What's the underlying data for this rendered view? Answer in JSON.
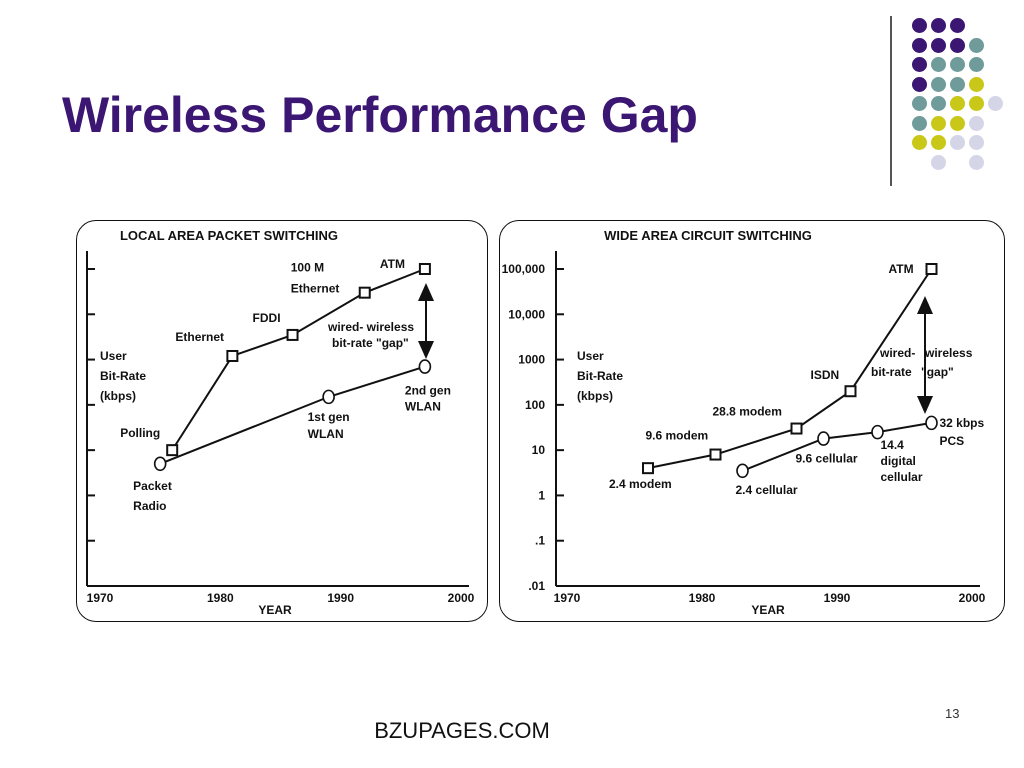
{
  "slide": {
    "title": "Wireless Performance Gap",
    "footer": "BZUPAGES.COM",
    "page_number": "13",
    "colors": {
      "title": "#3b1672",
      "purple": "#3b1672",
      "teal": "#6f9b9b",
      "yellow": "#c9c818",
      "lavender": "#d5d5e8"
    }
  },
  "chart_data": [
    {
      "type": "line",
      "title": "LOCAL AREA PACKET SWITCHING",
      "xlabel": "YEAR",
      "ylabel": [
        "User",
        "Bit-Rate",
        "(kbps)"
      ],
      "yscale": "log",
      "xlim": [
        1970,
        2000
      ],
      "ylim": [
        0.01,
        100000
      ],
      "x_ticks": [
        "1970",
        "1980",
        "1990",
        "2000"
      ],
      "y_ticks": [
        ".01",
        ".1",
        "1",
        "10",
        "100",
        "1000",
        "10,000",
        "100,000"
      ],
      "series": [
        {
          "marker": "square",
          "points": [
            {
              "x": 1976,
              "y": 10,
              "label": "Polling"
            },
            {
              "x": 1981,
              "y": 1200,
              "label": "Ethernet"
            },
            {
              "x": 1986,
              "y": 3500,
              "label": "FDDI"
            },
            {
              "x": 1992,
              "y": 30000,
              "label": "100 M Ethernet"
            },
            {
              "x": 1997,
              "y": 100000,
              "label": "ATM"
            }
          ]
        },
        {
          "marker": "circle",
          "points": [
            {
              "x": 1975,
              "y": 5,
              "label": "Packet Radio"
            },
            {
              "x": 1989,
              "y": 150,
              "label": "1st gen WLAN"
            },
            {
              "x": 1997,
              "y": 700,
              "label": "2nd gen WLAN"
            }
          ]
        }
      ],
      "annotation": "wired- wireless bit-rate \"gap\""
    },
    {
      "type": "line",
      "title": "WIDE AREA CIRCUIT SWITCHING",
      "xlabel": "YEAR",
      "ylabel": [
        "User",
        "Bit-Rate",
        "(kbps)"
      ],
      "yscale": "log",
      "xlim": [
        1970,
        2000
      ],
      "ylim": [
        0.01,
        100000
      ],
      "x_ticks": [
        "1970",
        "1980",
        "1990",
        "2000"
      ],
      "y_ticks": [
        ".01",
        ".1",
        "1",
        "10",
        "100",
        "1000",
        "10,000",
        "100,000"
      ],
      "series": [
        {
          "marker": "square",
          "points": [
            {
              "x": 1976,
              "y": 4,
              "label": "2.4 modem"
            },
            {
              "x": 1981,
              "y": 8,
              "label": "9.6 modem"
            },
            {
              "x": 1987,
              "y": 30,
              "label": "28.8 modem"
            },
            {
              "x": 1991,
              "y": 200,
              "label": "ISDN"
            },
            {
              "x": 1997,
              "y": 100000,
              "label": "ATM"
            }
          ]
        },
        {
          "marker": "circle",
          "points": [
            {
              "x": 1983,
              "y": 3.5,
              "label": "2.4 cellular"
            },
            {
              "x": 1989,
              "y": 18,
              "label": "9.6 cellular"
            },
            {
              "x": 1993,
              "y": 25,
              "label": "14.4 digital cellular"
            },
            {
              "x": 1997,
              "y": 40,
              "label": "32 kbps PCS"
            }
          ]
        }
      ],
      "annotation": "wired- wireless bit-rate \"gap\""
    }
  ]
}
